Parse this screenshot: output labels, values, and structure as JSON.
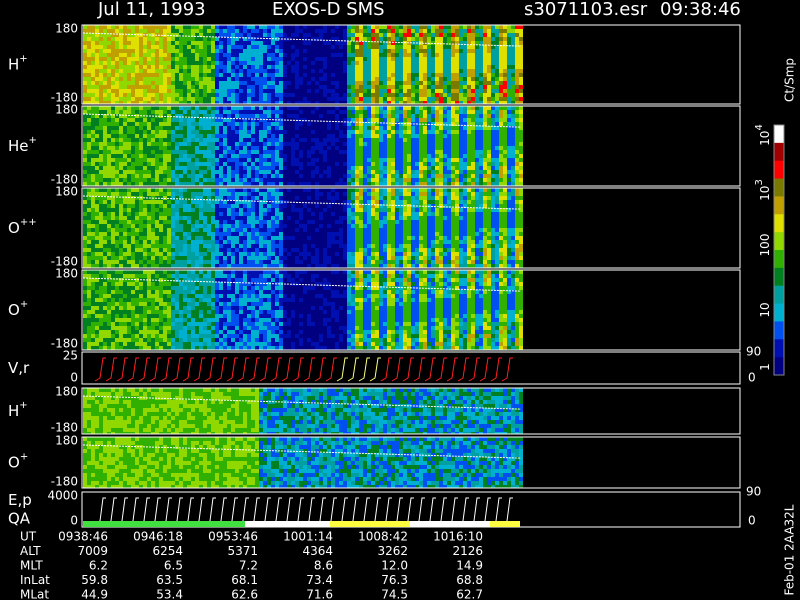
{
  "header": {
    "date": "Jul 11, 1993",
    "instrument": "EXOS-D SMS",
    "file": "s3071103.esr",
    "time": "09:38:46"
  },
  "panels": [
    {
      "label": {
        "base": "H",
        "sup": "+"
      },
      "top": "180",
      "bottom": "-180"
    },
    {
      "label": {
        "base": "He",
        "sup": "+"
      },
      "top": "180",
      "bottom": "-180"
    },
    {
      "label": {
        "base": "O",
        "sup": "++"
      },
      "top": "180",
      "bottom": "-180"
    },
    {
      "label": {
        "base": "O",
        "sup": "+"
      },
      "top": "180",
      "bottom": "-180"
    },
    {
      "label": {
        "base": "V,r",
        "sup": ""
      },
      "top": "25",
      "bottom": "0",
      "right_top": "90",
      "right_bottom": "0"
    },
    {
      "label": {
        "base": "H",
        "sup": "+"
      },
      "top": "180",
      "bottom": "-180"
    },
    {
      "label": {
        "base": "O",
        "sup": "+"
      },
      "top": "180",
      "bottom": "-180"
    },
    {
      "label": {
        "base": "E,p",
        "sup": ""
      },
      "label2": "QA",
      "top": "4000",
      "bottom": "0",
      "right_top": "90",
      "right_bottom": "0"
    }
  ],
  "colorbar": {
    "title": "Ct/Smp",
    "ticks": [
      {
        "base": "10",
        "sup": "4"
      },
      {
        "base": "10",
        "sup": "3"
      },
      {
        "base": "100",
        "sup": ""
      },
      {
        "base": "10",
        "sup": ""
      },
      {
        "base": "1",
        "sup": ""
      }
    ]
  },
  "table": {
    "rows": [
      [
        "UT",
        "0938:46",
        "0946:18",
        "0953:46",
        "1001:14",
        "1008:42",
        "1016:10"
      ],
      [
        "ALT",
        "7009",
        "6254",
        "5371",
        "4364",
        "3262",
        "2126"
      ],
      [
        "MLT",
        "6.2",
        "6.5",
        "7.2",
        "8.6",
        "12.0",
        "14.9"
      ],
      [
        "InLat",
        "59.8",
        "63.5",
        "68.1",
        "73.4",
        "76.3",
        "68.8"
      ],
      [
        "MLat",
        "44.9",
        "53.4",
        "62.6",
        "71.6",
        "74.5",
        "62.7"
      ]
    ]
  },
  "footer": "Feb-01 2AA32L"
}
